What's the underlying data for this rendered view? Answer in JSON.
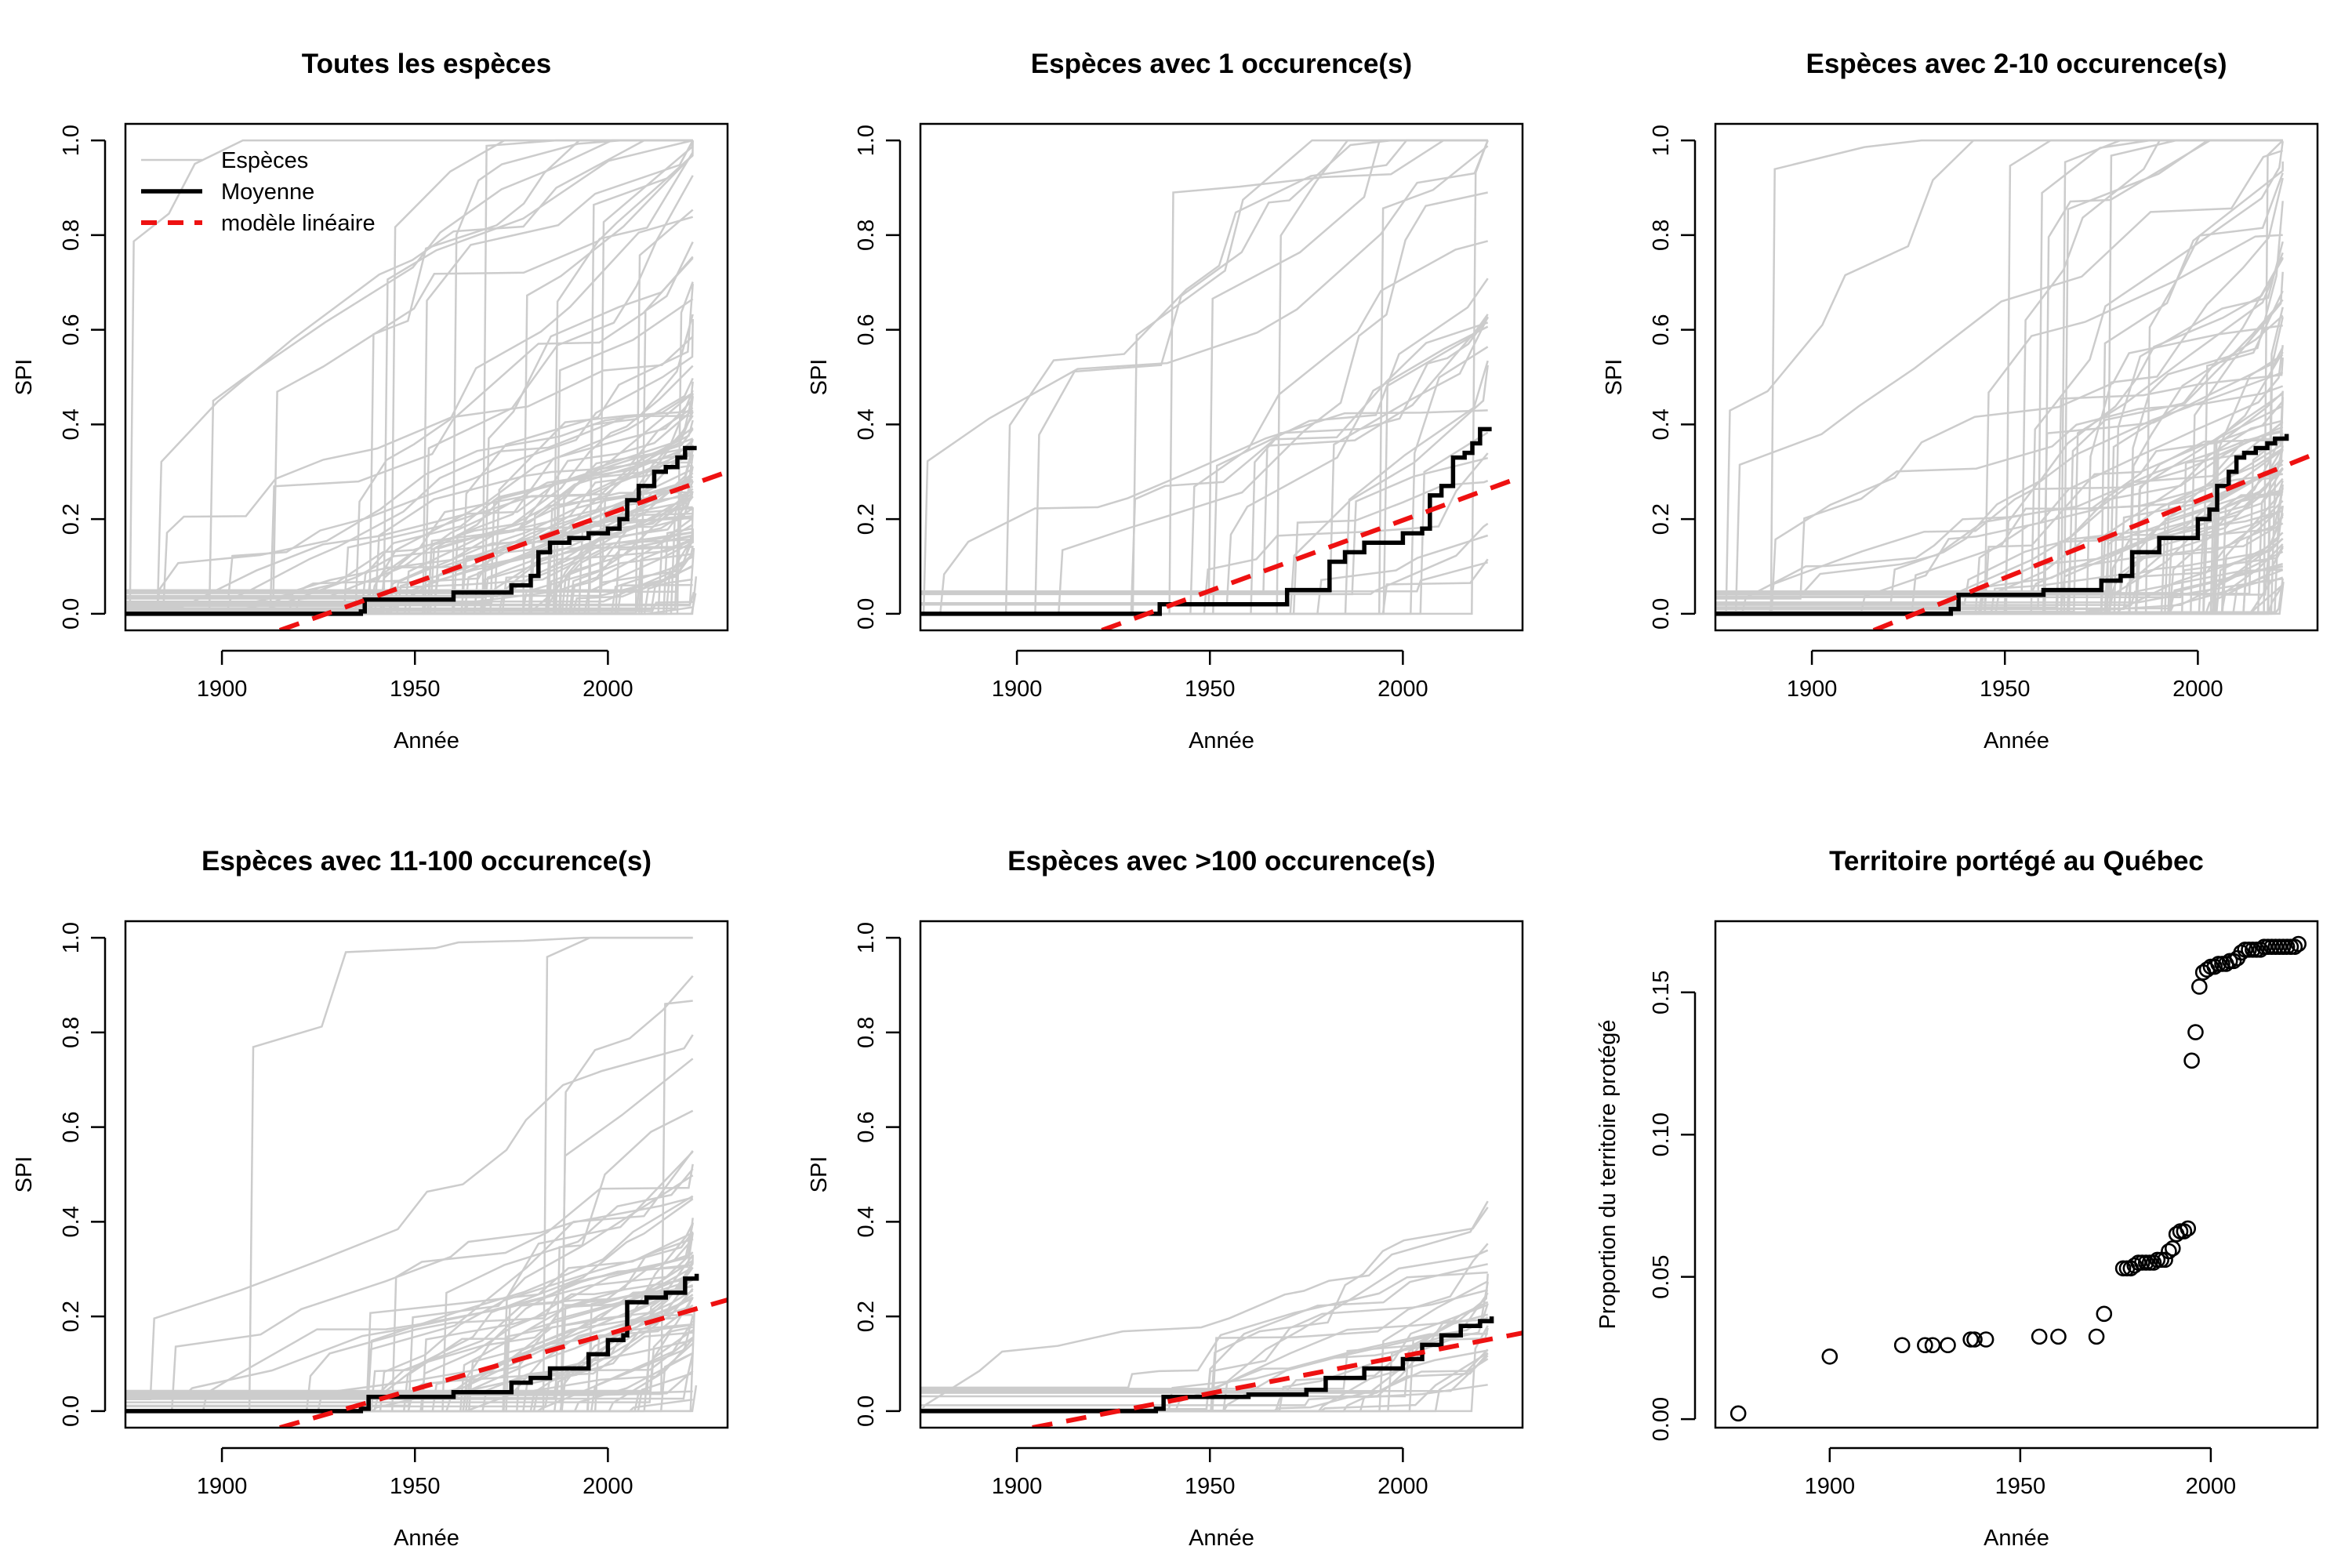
{
  "colors": {
    "species": "#cccccc",
    "mean": "#000000",
    "model": "#ee1111",
    "points": "#000000"
  },
  "legend": {
    "position": "top-left",
    "items": [
      {
        "label": "Espèces",
        "kind": "species"
      },
      {
        "label": "Moyenne",
        "kind": "mean"
      },
      {
        "label": "modèle linéaire",
        "kind": "model"
      }
    ]
  },
  "chart_data": [
    {
      "type": "line",
      "title": "Toutes les espèces",
      "xlabel": "Année",
      "ylabel": "SPI",
      "xlim": [
        1875,
        2031
      ],
      "ylim": [
        -0.035,
        1.035
      ],
      "xticks": [
        "1900",
        "1950",
        "2000"
      ],
      "yticks": [
        "0.0",
        "0.2",
        "0.4",
        "0.6",
        "0.8",
        "1.0"
      ],
      "series": [
        {
          "name": "Moyenne",
          "x": [
            1875,
            1936,
            1937,
            1960,
            1975,
            1980,
            1982,
            1985,
            1990,
            1995,
            2000,
            2003,
            2005,
            2008,
            2012,
            2015,
            2018,
            2020,
            2023
          ],
          "y": [
            0.0,
            0.005,
            0.03,
            0.045,
            0.06,
            0.08,
            0.13,
            0.15,
            0.16,
            0.17,
            0.18,
            0.2,
            0.24,
            0.27,
            0.3,
            0.31,
            0.33,
            0.35,
            0.35
          ]
        },
        {
          "name": "modèle linéaire",
          "x": [
            1915,
            2031
          ],
          "y": [
            -0.035,
            0.3
          ]
        }
      ]
    },
    {
      "type": "line",
      "title": "Espèces avec 1 occurence(s)",
      "xlabel": "Année",
      "ylabel": "SPI",
      "xlim": [
        1875,
        2031
      ],
      "ylim": [
        -0.035,
        1.035
      ],
      "xticks": [
        "1900",
        "1950",
        "2000"
      ],
      "yticks": [
        "0.0",
        "0.2",
        "0.4",
        "0.6",
        "0.8",
        "1.0"
      ],
      "series": [
        {
          "name": "Moyenne",
          "x": [
            1875,
            1935,
            1937,
            1960,
            1970,
            1980,
            1981,
            1985,
            1990,
            1995,
            2000,
            2005,
            2007,
            2010,
            2013,
            2016,
            2018,
            2020,
            2023
          ],
          "y": [
            0.0,
            0.0,
            0.02,
            0.02,
            0.05,
            0.05,
            0.11,
            0.13,
            0.15,
            0.15,
            0.17,
            0.18,
            0.25,
            0.27,
            0.33,
            0.34,
            0.36,
            0.39,
            0.39
          ]
        },
        {
          "name": "modèle linéaire",
          "x": [
            1922,
            2031
          ],
          "y": [
            -0.035,
            0.29
          ]
        }
      ]
    },
    {
      "type": "line",
      "title": "Espèces avec 2-10 occurence(s)",
      "xlabel": "Année",
      "ylabel": "SPI",
      "xlim": [
        1875,
        2031
      ],
      "ylim": [
        -0.035,
        1.035
      ],
      "xticks": [
        "1900",
        "1950",
        "2000"
      ],
      "yticks": [
        "0.0",
        "0.2",
        "0.4",
        "0.6",
        "0.8",
        "1.0"
      ],
      "series": [
        {
          "name": "Moyenne",
          "x": [
            1875,
            1936,
            1938,
            1960,
            1975,
            1980,
            1983,
            1990,
            2000,
            2003,
            2005,
            2008,
            2010,
            2012,
            2015,
            2018,
            2020,
            2023
          ],
          "y": [
            0.0,
            0.01,
            0.04,
            0.05,
            0.07,
            0.08,
            0.13,
            0.16,
            0.2,
            0.22,
            0.27,
            0.3,
            0.33,
            0.34,
            0.35,
            0.36,
            0.37,
            0.38
          ]
        },
        {
          "name": "modèle linéaire",
          "x": [
            1916,
            2031
          ],
          "y": [
            -0.035,
            0.34
          ]
        }
      ]
    },
    {
      "type": "line",
      "title": "Espèces avec 11-100 occurence(s)",
      "xlabel": "Année",
      "ylabel": "SPI",
      "xlim": [
        1875,
        2031
      ],
      "ylim": [
        -0.035,
        1.035
      ],
      "xticks": [
        "1900",
        "1950",
        "2000"
      ],
      "yticks": [
        "0.0",
        "0.2",
        "0.4",
        "0.6",
        "0.8",
        "1.0"
      ],
      "series": [
        {
          "name": "Moyenne",
          "x": [
            1875,
            1936,
            1938,
            1960,
            1975,
            1980,
            1985,
            1995,
            2000,
            2004,
            2005,
            2010,
            2015,
            2020,
            2023
          ],
          "y": [
            0.0,
            0.005,
            0.03,
            0.04,
            0.06,
            0.07,
            0.09,
            0.12,
            0.15,
            0.16,
            0.23,
            0.24,
            0.25,
            0.28,
            0.29
          ]
        },
        {
          "name": "modèle linéaire",
          "x": [
            1915,
            2031
          ],
          "y": [
            -0.035,
            0.235
          ]
        }
      ]
    },
    {
      "type": "line",
      "title": "Espèces avec >100 occurence(s)",
      "xlabel": "Année",
      "ylabel": "SPI",
      "xlim": [
        1875,
        2031
      ],
      "ylim": [
        -0.035,
        1.035
      ],
      "xticks": [
        "1900",
        "1950",
        "2000"
      ],
      "yticks": [
        "0.0",
        "0.2",
        "0.4",
        "0.6",
        "0.8",
        "1.0"
      ],
      "series": [
        {
          "name": "Moyenne",
          "x": [
            1875,
            1936,
            1938,
            1960,
            1975,
            1980,
            1990,
            2000,
            2005,
            2010,
            2015,
            2020,
            2023
          ],
          "y": [
            0.0,
            0.005,
            0.03,
            0.035,
            0.045,
            0.07,
            0.09,
            0.11,
            0.14,
            0.16,
            0.18,
            0.19,
            0.2
          ]
        },
        {
          "name": "modèle linéaire",
          "x": [
            1904,
            2031
          ],
          "y": [
            -0.035,
            0.165
          ]
        }
      ]
    },
    {
      "type": "scatter",
      "title": "Territoire portégé au Québec",
      "xlabel": "Année",
      "ylabel": "Proportion du territoire protégé",
      "xlim": [
        1870,
        2028
      ],
      "ylim": [
        -0.003,
        0.175
      ],
      "xticks": [
        "1900",
        "1950",
        "2000"
      ],
      "yticks": [
        "0.00",
        "0.05",
        "0.10",
        "0.15"
      ],
      "series": [
        {
          "x": [
            1876,
            1900,
            1919,
            1925,
            1927,
            1931,
            1937,
            1938,
            1941,
            1955,
            1960,
            1970,
            1972,
            1977,
            1978,
            1979,
            1980,
            1981,
            1982,
            1983,
            1984,
            1985,
            1986,
            1987,
            1988,
            1989,
            1990,
            1991,
            1992,
            1993,
            1994,
            1995,
            1996,
            1997,
            1998,
            1999,
            2000,
            2001,
            2002,
            2003,
            2004,
            2005,
            2006,
            2007,
            2008,
            2009,
            2010,
            2011,
            2012,
            2013,
            2014,
            2015,
            2016,
            2017,
            2018,
            2019,
            2020,
            2021,
            2022,
            2023
          ],
          "y": [
            0.002,
            0.022,
            0.026,
            0.026,
            0.026,
            0.026,
            0.028,
            0.028,
            0.028,
            0.029,
            0.029,
            0.029,
            0.037,
            0.053,
            0.053,
            0.053,
            0.054,
            0.055,
            0.055,
            0.055,
            0.055,
            0.055,
            0.056,
            0.056,
            0.056,
            0.059,
            0.06,
            0.065,
            0.066,
            0.066,
            0.067,
            0.126,
            0.136,
            0.152,
            0.157,
            0.158,
            0.159,
            0.159,
            0.16,
            0.16,
            0.16,
            0.161,
            0.161,
            0.162,
            0.164,
            0.165,
            0.165,
            0.165,
            0.165,
            0.165,
            0.166,
            0.166,
            0.166,
            0.166,
            0.166,
            0.166,
            0.166,
            0.166,
            0.166,
            0.167
          ]
        }
      ]
    }
  ]
}
